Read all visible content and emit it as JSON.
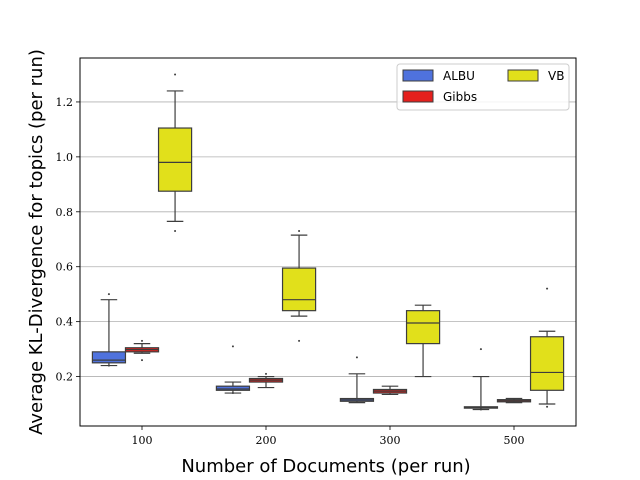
{
  "chart_data": {
    "type": "boxplot",
    "title": "",
    "xlabel": "Number of Documents (per run)",
    "ylabel": "Average KL-Divergence for topics (per run)",
    "categories": [
      "100",
      "200",
      "300",
      "500"
    ],
    "ylim": [
      0.02,
      1.36
    ],
    "yticks": [
      0.2,
      0.4,
      0.6,
      0.8,
      1.0,
      1.2
    ],
    "ytick_labels": [
      "0.2",
      "0.4",
      "0.6",
      "0.8",
      "1.0",
      "1.2"
    ],
    "grid": "horizontal",
    "legend": {
      "placement": "top-right",
      "columns": 2
    },
    "series": [
      {
        "name": "ALBU",
        "color": "#4f72dd",
        "boxes": [
          {
            "whisker_low": 0.24,
            "q1": 0.25,
            "median": 0.26,
            "q3": 0.29,
            "whisker_high": 0.48,
            "fliers": [
              0.5,
              0.24
            ]
          },
          {
            "whisker_low": 0.14,
            "q1": 0.15,
            "median": 0.155,
            "q3": 0.165,
            "whisker_high": 0.18,
            "fliers": [
              0.31,
              0.14
            ]
          },
          {
            "whisker_low": 0.105,
            "q1": 0.11,
            "median": 0.115,
            "q3": 0.12,
            "whisker_high": 0.21,
            "fliers": [
              0.27
            ]
          },
          {
            "whisker_low": 0.08,
            "q1": 0.085,
            "median": 0.087,
            "q3": 0.09,
            "whisker_high": 0.2,
            "fliers": [
              0.3,
              0.08
            ]
          }
        ]
      },
      {
        "name": "Gibbs",
        "color": "#e4201d",
        "boxes": [
          {
            "whisker_low": 0.285,
            "q1": 0.29,
            "median": 0.298,
            "q3": 0.305,
            "whisker_high": 0.32,
            "fliers": [
              0.26,
              0.33
            ]
          },
          {
            "whisker_low": 0.16,
            "q1": 0.18,
            "median": 0.187,
            "q3": 0.193,
            "whisker_high": 0.2,
            "fliers": [
              0.21
            ]
          },
          {
            "whisker_low": 0.135,
            "q1": 0.14,
            "median": 0.147,
            "q3": 0.153,
            "whisker_high": 0.165,
            "fliers": []
          },
          {
            "whisker_low": 0.105,
            "q1": 0.108,
            "median": 0.112,
            "q3": 0.116,
            "whisker_high": 0.12,
            "fliers": [
              0.108
            ]
          }
        ]
      },
      {
        "name": "VB",
        "color": "#e1e01b",
        "boxes": [
          {
            "whisker_low": 0.765,
            "q1": 0.875,
            "median": 0.98,
            "q3": 1.105,
            "whisker_high": 1.24,
            "fliers": [
              1.3,
              0.73
            ]
          },
          {
            "whisker_low": 0.42,
            "q1": 0.44,
            "median": 0.48,
            "q3": 0.595,
            "whisker_high": 0.715,
            "fliers": [
              0.73,
              0.33
            ]
          },
          {
            "whisker_low": 0.2,
            "q1": 0.32,
            "median": 0.395,
            "q3": 0.44,
            "whisker_high": 0.46,
            "fliers": []
          },
          {
            "whisker_low": 0.1,
            "q1": 0.15,
            "median": 0.215,
            "q3": 0.345,
            "whisker_high": 0.365,
            "fliers": [
              0.52,
              0.09
            ]
          }
        ]
      }
    ]
  }
}
